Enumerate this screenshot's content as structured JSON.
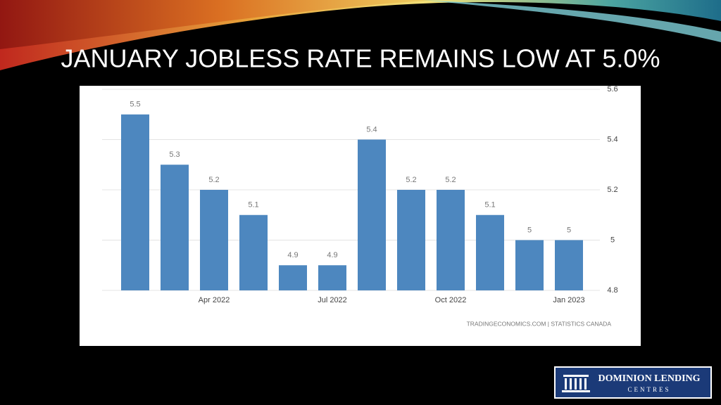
{
  "chart_data": {
    "type": "bar",
    "title": "JANUARY JOBLESS RATE REMAINS LOW AT 5.0%",
    "categories": [
      null,
      null,
      "Apr 2022",
      null,
      null,
      "Jul 2022",
      null,
      null,
      "Oct 2022",
      null,
      null,
      "Jan 2023"
    ],
    "values": [
      5.5,
      5.3,
      5.2,
      5.1,
      4.9,
      4.9,
      5.4,
      5.2,
      5.2,
      5.1,
      5,
      5
    ],
    "color": "#4d87bf",
    "ylim": [
      4.8,
      5.6
    ],
    "yticks": [
      4.8,
      5,
      5.2,
      5.4,
      5.6
    ],
    "grid": true,
    "source": "TRADINGECONOMICS.COM  |  STATISTICS CANADA"
  },
  "logo": {
    "name": "DOMINION LENDING",
    "subtitle": "CENTRES"
  }
}
